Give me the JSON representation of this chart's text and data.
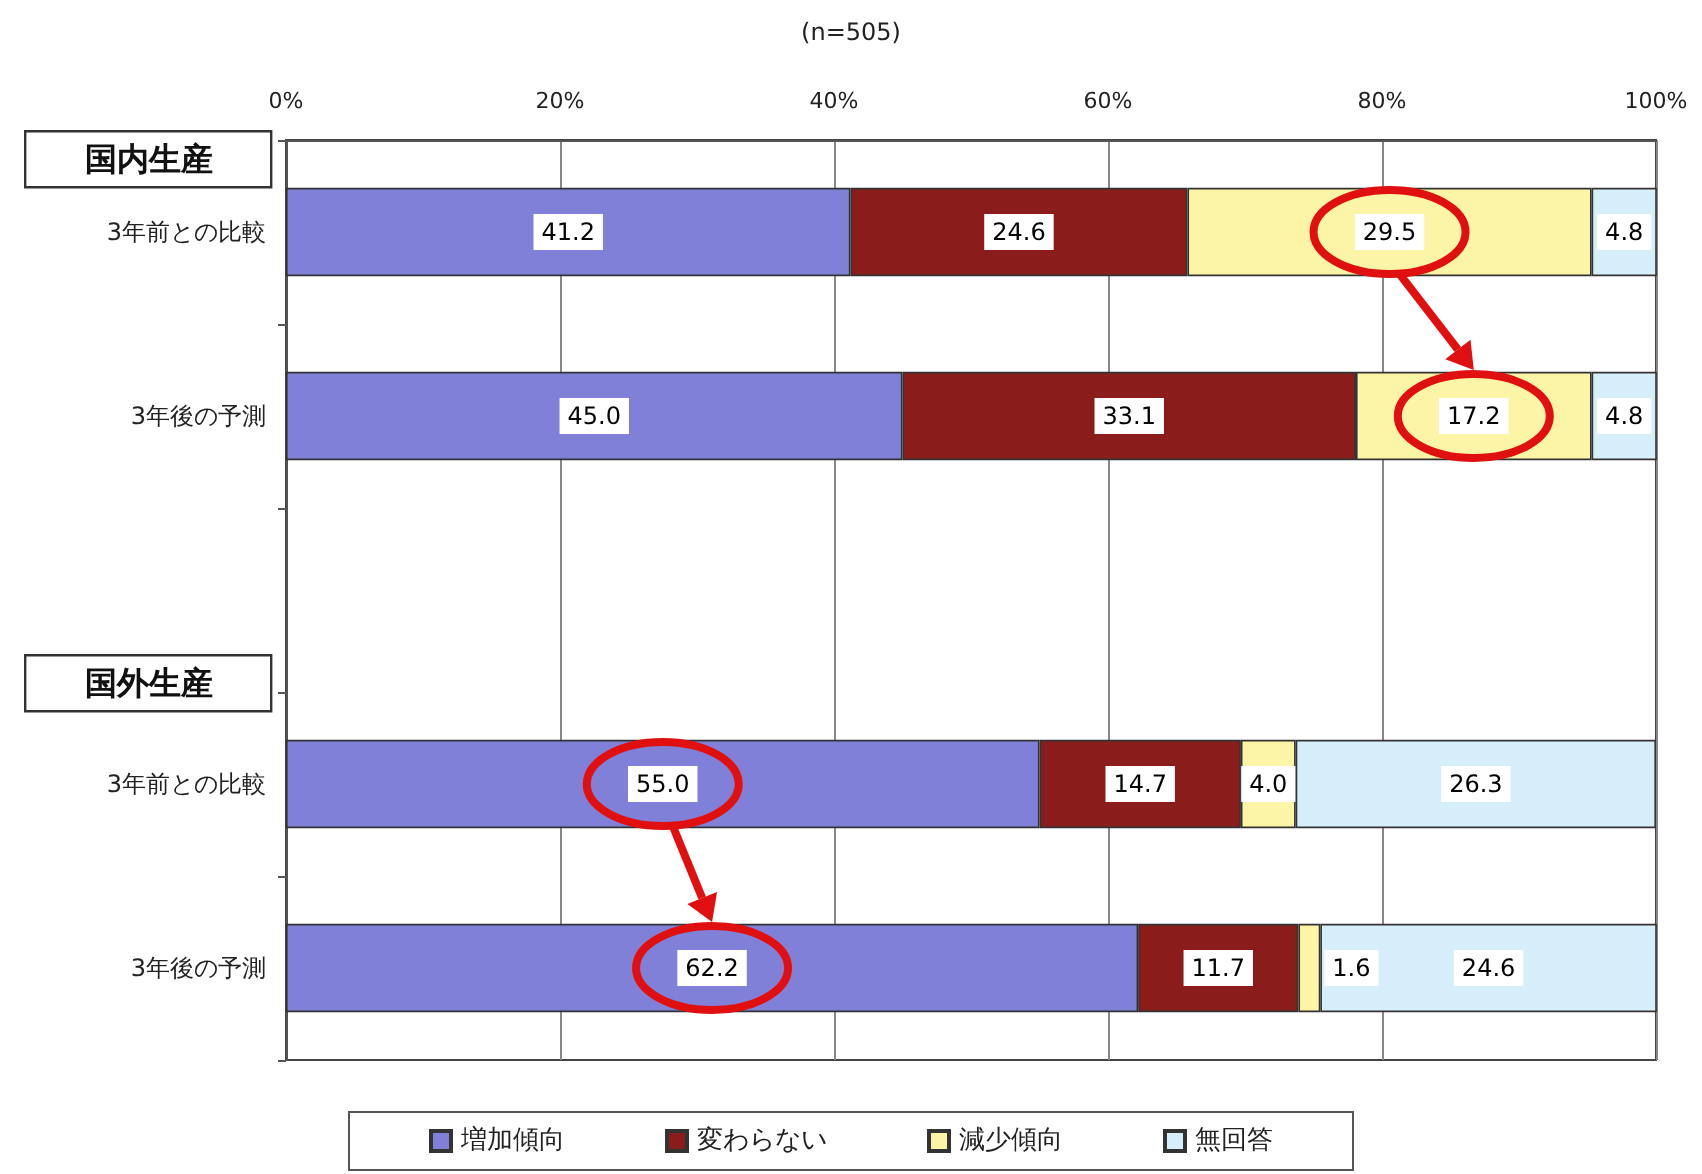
{
  "chart_data": {
    "type": "bar",
    "orientation": "horizontal",
    "stacked": true,
    "subtitle": "(n=505)",
    "annotations": [
      "国内生産",
      "国外生産"
    ],
    "categories": [
      "3年前との比較",
      "3年後の予測",
      null,
      "3年前との比較",
      "3年後の予測"
    ],
    "series": [
      {
        "name": "増加傾向",
        "color": "#8080d8",
        "values": [
          41.2,
          45.0,
          null,
          55.0,
          62.2
        ],
        "value_labels": [
          "41.2",
          "45.0",
          null,
          "55.0",
          "62.2"
        ]
      },
      {
        "name": "変わらない",
        "color": "#8b1c1c",
        "values": [
          24.6,
          33.1,
          null,
          14.7,
          11.7
        ],
        "value_labels": [
          "24.6",
          "33.1",
          null,
          "14.7",
          "11.7"
        ]
      },
      {
        "name": "減少傾向",
        "color": "#fcf4a6",
        "values": [
          29.5,
          17.2,
          null,
          4.0,
          1.6
        ],
        "value_labels": [
          "29.5",
          "17.2",
          null,
          "4.0",
          "1.6"
        ]
      },
      {
        "name": "無回答",
        "color": "#d6eef9",
        "values": [
          4.8,
          4.8,
          null,
          26.3,
          24.6
        ],
        "value_labels": [
          "4.8",
          "4.8",
          null,
          "26.3",
          "24.6"
        ]
      }
    ],
    "xlim": [
      0,
      100
    ],
    "xticks": [
      {
        "value": 0,
        "label": "0%"
      },
      {
        "value": 20,
        "label": "20%"
      },
      {
        "value": 40,
        "label": "40%"
      },
      {
        "value": 60,
        "label": "60%"
      },
      {
        "value": 80,
        "label": "80%"
      },
      {
        "value": 100,
        "label": "100%"
      }
    ],
    "grid": "x",
    "legend": "bottom"
  }
}
